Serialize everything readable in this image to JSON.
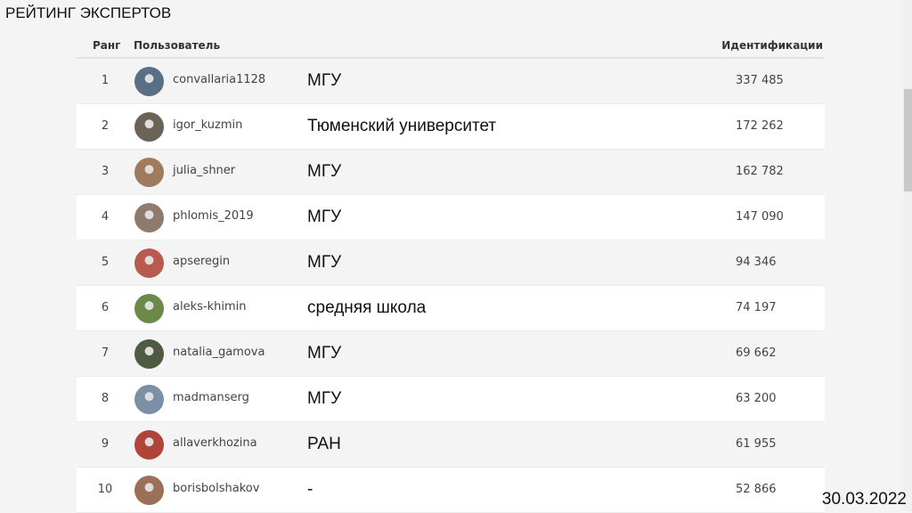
{
  "title": "РЕЙТИНГ ЭКСПЕРТОВ",
  "columns": {
    "rank": "Ранг",
    "user": "Пользователь",
    "ids": "Идентификации"
  },
  "rows": [
    {
      "rank": "1",
      "user": "convallaria1128",
      "inst": "МГУ",
      "ids": "337 485",
      "avatar_color": "#5a6e84"
    },
    {
      "rank": "2",
      "user": "igor_kuzmin",
      "inst": "Тюменский университет",
      "ids": "172 262",
      "avatar_color": "#6d6258"
    },
    {
      "rank": "3",
      "user": "julia_shner",
      "inst": "МГУ",
      "ids": "162 782",
      "avatar_color": "#a07a5c"
    },
    {
      "rank": "4",
      "user": "phlomis_2019",
      "inst": "МГУ",
      "ids": "147 090",
      "avatar_color": "#8e7b6c"
    },
    {
      "rank": "5",
      "user": "apseregin",
      "inst": "МГУ",
      "ids": "94 346",
      "avatar_color": "#b85a4e"
    },
    {
      "rank": "6",
      "user": "aleks-khimin",
      "inst": "средняя школа",
      "ids": "74 197",
      "avatar_color": "#6b8a4a"
    },
    {
      "rank": "7",
      "user": "natalia_gamova",
      "inst": "МГУ",
      "ids": "69 662",
      "avatar_color": "#4f5a42"
    },
    {
      "rank": "8",
      "user": "madmanserg",
      "inst": "МГУ",
      "ids": "63 200",
      "avatar_color": "#7d8fa6"
    },
    {
      "rank": "9",
      "user": "allaverkhozina",
      "inst": "РАН",
      "ids": "61 955",
      "avatar_color": "#b0443a"
    },
    {
      "rank": "10",
      "user": "borisbolshakov",
      "inst": "-",
      "ids": "52 866",
      "avatar_color": "#9a7058"
    }
  ],
  "date": "30.03.2022"
}
